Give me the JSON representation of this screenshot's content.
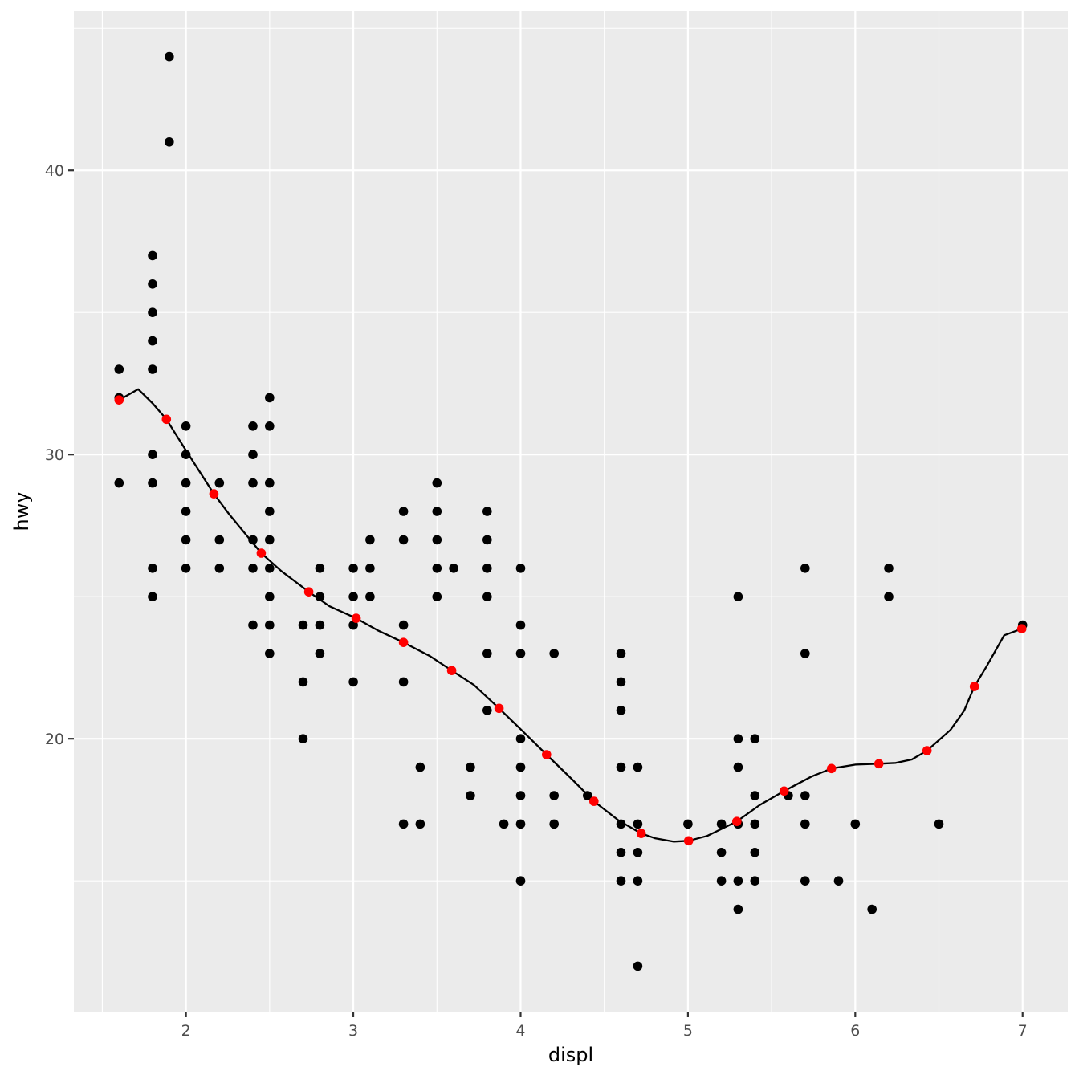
{
  "chart_data": {
    "type": "scatter",
    "title": "",
    "xlabel": "displ",
    "ylabel": "hwy",
    "xlim": [
      1.33,
      7.27
    ],
    "ylim": [
      10.4,
      45.6
    ],
    "x_ticks": [
      2,
      3,
      4,
      5,
      6,
      7
    ],
    "x_tick_labels": [
      "2",
      "3",
      "4",
      "5",
      "6",
      "7"
    ],
    "x_minor": [
      1.5,
      2.5,
      3.5,
      4.5,
      5.5,
      6.5
    ],
    "y_ticks": [
      20,
      30,
      40
    ],
    "y_tick_labels": [
      "20",
      "30",
      "40"
    ],
    "y_minor": [
      15,
      25,
      35,
      45
    ],
    "grid": true,
    "legend": null,
    "colors": {
      "panel_bg": "#ebebeb",
      "grid": "#ffffff",
      "points": "#000000",
      "highlight_points": "#ff0000",
      "line": "#000000",
      "tick_text": "#4d4d4d",
      "title_text": "#000000"
    },
    "series": [
      {
        "name": "observations",
        "type": "scatter",
        "color": "#000000",
        "points": [
          [
            1.6,
            33
          ],
          [
            1.6,
            32
          ],
          [
            1.6,
            29
          ],
          [
            1.8,
            37
          ],
          [
            1.8,
            36
          ],
          [
            1.8,
            35
          ],
          [
            1.8,
            34
          ],
          [
            1.8,
            33
          ],
          [
            1.8,
            30
          ],
          [
            1.8,
            29
          ],
          [
            1.8,
            26
          ],
          [
            1.8,
            25
          ],
          [
            1.9,
            44
          ],
          [
            1.9,
            41
          ],
          [
            2.0,
            31
          ],
          [
            2.0,
            30
          ],
          [
            2.0,
            29
          ],
          [
            2.0,
            28
          ],
          [
            2.0,
            27
          ],
          [
            2.0,
            26
          ],
          [
            2.2,
            29
          ],
          [
            2.2,
            27
          ],
          [
            2.2,
            26
          ],
          [
            2.4,
            31
          ],
          [
            2.4,
            30
          ],
          [
            2.4,
            29
          ],
          [
            2.4,
            27
          ],
          [
            2.4,
            26
          ],
          [
            2.4,
            24
          ],
          [
            2.5,
            32
          ],
          [
            2.5,
            31
          ],
          [
            2.5,
            29
          ],
          [
            2.5,
            28
          ],
          [
            2.5,
            27
          ],
          [
            2.5,
            26
          ],
          [
            2.5,
            25
          ],
          [
            2.5,
            24
          ],
          [
            2.5,
            23
          ],
          [
            2.7,
            24
          ],
          [
            2.7,
            22
          ],
          [
            2.7,
            20
          ],
          [
            2.8,
            26
          ],
          [
            2.8,
            25
          ],
          [
            2.8,
            24
          ],
          [
            2.8,
            23
          ],
          [
            3.0,
            26
          ],
          [
            3.0,
            25
          ],
          [
            3.0,
            24
          ],
          [
            3.0,
            22
          ],
          [
            3.1,
            27
          ],
          [
            3.1,
            26
          ],
          [
            3.1,
            25
          ],
          [
            3.3,
            28
          ],
          [
            3.3,
            27
          ],
          [
            3.3,
            24
          ],
          [
            3.3,
            22
          ],
          [
            3.3,
            17
          ],
          [
            3.4,
            19
          ],
          [
            3.4,
            17
          ],
          [
            3.5,
            29
          ],
          [
            3.5,
            28
          ],
          [
            3.5,
            27
          ],
          [
            3.5,
            26
          ],
          [
            3.5,
            25
          ],
          [
            3.6,
            26
          ],
          [
            3.7,
            19
          ],
          [
            3.7,
            18
          ],
          [
            3.8,
            28
          ],
          [
            3.8,
            27
          ],
          [
            3.8,
            26
          ],
          [
            3.8,
            25
          ],
          [
            3.8,
            23
          ],
          [
            3.8,
            21
          ],
          [
            3.9,
            17
          ],
          [
            4.0,
            26
          ],
          [
            4.0,
            24
          ],
          [
            4.0,
            23
          ],
          [
            4.0,
            20
          ],
          [
            4.0,
            19
          ],
          [
            4.0,
            18
          ],
          [
            4.0,
            17
          ],
          [
            4.0,
            15
          ],
          [
            4.2,
            23
          ],
          [
            4.2,
            18
          ],
          [
            4.2,
            17
          ],
          [
            4.4,
            18
          ],
          [
            4.6,
            23
          ],
          [
            4.6,
            22
          ],
          [
            4.6,
            21
          ],
          [
            4.6,
            19
          ],
          [
            4.6,
            17
          ],
          [
            4.6,
            16
          ],
          [
            4.6,
            15
          ],
          [
            4.7,
            19
          ],
          [
            4.7,
            17
          ],
          [
            4.7,
            16
          ],
          [
            4.7,
            15
          ],
          [
            4.7,
            12
          ],
          [
            5.0,
            17
          ],
          [
            5.2,
            17
          ],
          [
            5.2,
            16
          ],
          [
            5.2,
            15
          ],
          [
            5.3,
            25
          ],
          [
            5.3,
            20
          ],
          [
            5.3,
            19
          ],
          [
            5.3,
            17
          ],
          [
            5.3,
            15
          ],
          [
            5.3,
            14
          ],
          [
            5.4,
            20
          ],
          [
            5.4,
            18
          ],
          [
            5.4,
            17
          ],
          [
            5.4,
            16
          ],
          [
            5.4,
            15
          ],
          [
            5.6,
            18
          ],
          [
            5.7,
            26
          ],
          [
            5.7,
            23
          ],
          [
            5.7,
            18
          ],
          [
            5.7,
            17
          ],
          [
            5.7,
            15
          ],
          [
            5.9,
            15
          ],
          [
            6.0,
            17
          ],
          [
            6.1,
            14
          ],
          [
            6.2,
            26
          ],
          [
            6.2,
            25
          ],
          [
            6.5,
            17
          ],
          [
            7.0,
            24
          ]
        ]
      },
      {
        "name": "smooth",
        "type": "line",
        "color": "#000000",
        "points": [
          [
            1.6,
            31.92
          ],
          [
            1.715,
            32.3
          ],
          [
            1.801,
            31.8
          ],
          [
            1.883,
            31.24
          ],
          [
            1.994,
            30.2
          ],
          [
            2.167,
            28.62
          ],
          [
            2.258,
            27.9
          ],
          [
            2.45,
            26.53
          ],
          [
            2.57,
            25.9
          ],
          [
            2.734,
            25.17
          ],
          [
            2.858,
            24.66
          ],
          [
            3.017,
            24.24
          ],
          [
            3.147,
            23.81
          ],
          [
            3.3,
            23.39
          ],
          [
            3.458,
            22.91
          ],
          [
            3.588,
            22.4
          ],
          [
            3.722,
            21.89
          ],
          [
            3.871,
            21.07
          ],
          [
            4.01,
            20.28
          ],
          [
            4.155,
            19.44
          ],
          [
            4.299,
            18.62
          ],
          [
            4.438,
            17.8
          ],
          [
            4.587,
            17.12
          ],
          [
            4.721,
            16.67
          ],
          [
            4.803,
            16.5
          ],
          [
            4.913,
            16.38
          ],
          [
            5.004,
            16.41
          ],
          [
            5.115,
            16.58
          ],
          [
            5.292,
            17.09
          ],
          [
            5.427,
            17.66
          ],
          [
            5.575,
            18.16
          ],
          [
            5.738,
            18.67
          ],
          [
            5.858,
            18.95
          ],
          [
            6.002,
            19.09
          ],
          [
            6.141,
            19.12
          ],
          [
            6.242,
            19.15
          ],
          [
            6.338,
            19.27
          ],
          [
            6.429,
            19.58
          ],
          [
            6.569,
            20.31
          ],
          [
            6.651,
            20.99
          ],
          [
            6.712,
            21.84
          ],
          [
            6.784,
            22.54
          ],
          [
            6.89,
            23.64
          ],
          [
            6.995,
            23.87
          ]
        ]
      },
      {
        "name": "evaluation_points",
        "type": "scatter",
        "color": "#ff0000",
        "points": [
          [
            1.6,
            31.92
          ],
          [
            1.883,
            31.24
          ],
          [
            2.167,
            28.62
          ],
          [
            2.45,
            26.53
          ],
          [
            2.734,
            25.17
          ],
          [
            3.017,
            24.24
          ],
          [
            3.3,
            23.39
          ],
          [
            3.588,
            22.4
          ],
          [
            3.871,
            21.07
          ],
          [
            4.155,
            19.44
          ],
          [
            4.438,
            17.8
          ],
          [
            4.721,
            16.67
          ],
          [
            5.004,
            16.41
          ],
          [
            5.292,
            17.09
          ],
          [
            5.575,
            18.16
          ],
          [
            5.858,
            18.95
          ],
          [
            6.141,
            19.12
          ],
          [
            6.429,
            19.58
          ],
          [
            6.712,
            21.84
          ],
          [
            6.995,
            23.87
          ]
        ]
      }
    ]
  }
}
